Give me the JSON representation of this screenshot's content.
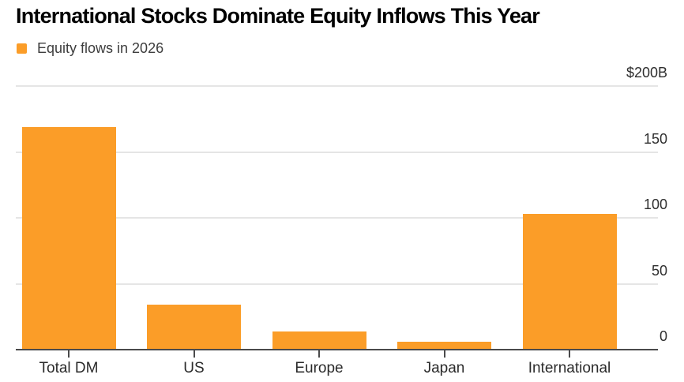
{
  "chart": {
    "title": "International Stocks Dominate Equity Inflows This Year",
    "legend_label": "Equity flows in 2026"
  },
  "chart_data": {
    "type": "bar",
    "title": "International Stocks Dominate Equity Inflows This Year",
    "legend": [
      "Equity flows in 2026"
    ],
    "legend_position": "top-left",
    "categories": [
      "Total DM",
      "US",
      "Europe",
      "Japan",
      "International"
    ],
    "values": [
      169,
      34,
      14,
      6,
      103
    ],
    "unit": "$B",
    "ylabel": "",
    "xlabel": "",
    "ylim": [
      0,
      200
    ],
    "ytick_values": [
      200,
      150,
      100,
      50,
      0
    ],
    "ytick_labels": [
      "$200B",
      "150",
      "100",
      "50",
      "0"
    ],
    "grid": "horizontal",
    "colors": {
      "bar": "#FB9D28",
      "grid": "#E5E5E5",
      "axis": "#4A4A4B",
      "title": "#000000",
      "tick_text": "#2E2E2E",
      "category_text": "#2B2B2B",
      "legend_text": "#3D3D3D"
    }
  }
}
